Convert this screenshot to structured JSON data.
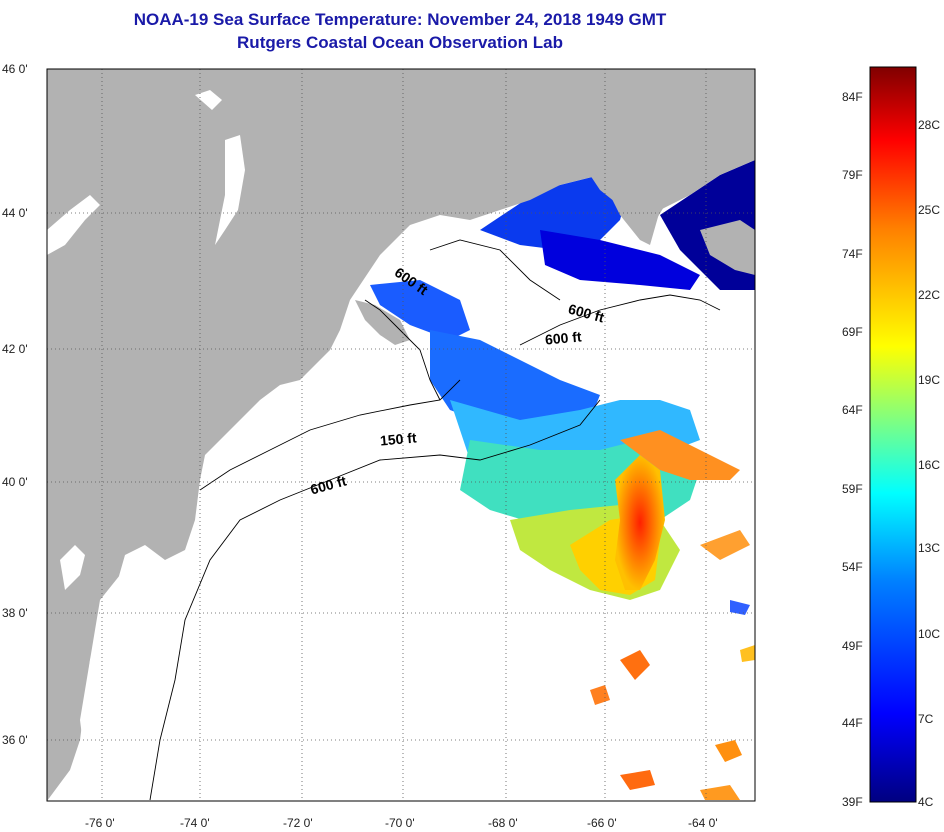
{
  "title": {
    "line1": "NOAA-19 Sea Surface Temperature:  November 24, 2018 1949 GMT",
    "line2": "Rutgers Coastal Ocean Observation Lab"
  },
  "map": {
    "lat_labels": [
      "46 0'",
      "44 0'",
      "42 0'",
      "40 0'",
      "38 0'",
      "36 0'"
    ],
    "lon_labels": [
      "-76 0'",
      "-74 0'",
      "-72 0'",
      "-70 0'",
      "-68 0'",
      "-66 0'",
      "-64 0'"
    ],
    "isobath_labels": [
      "600 ft",
      "600 ft",
      "600 ft",
      "150 ft",
      "600 ft"
    ],
    "colors": {
      "land": "#b2b2b2",
      "ocean_nodata": "#ffffff",
      "grid": "#555555"
    }
  },
  "colorbar": {
    "fahrenheit_labels": [
      "84F",
      "79F",
      "74F",
      "69F",
      "64F",
      "59F",
      "54F",
      "49F",
      "44F",
      "39F"
    ],
    "celsius_labels": [
      "28C",
      "25C",
      "22C",
      "19C",
      "16C",
      "13C",
      "10C",
      "7C",
      "4C"
    ],
    "colors": [
      "#000080",
      "#0000ff",
      "#0080ff",
      "#00ffff",
      "#80ff80",
      "#ffff00",
      "#ff8000",
      "#ff0000",
      "#800000"
    ]
  }
}
